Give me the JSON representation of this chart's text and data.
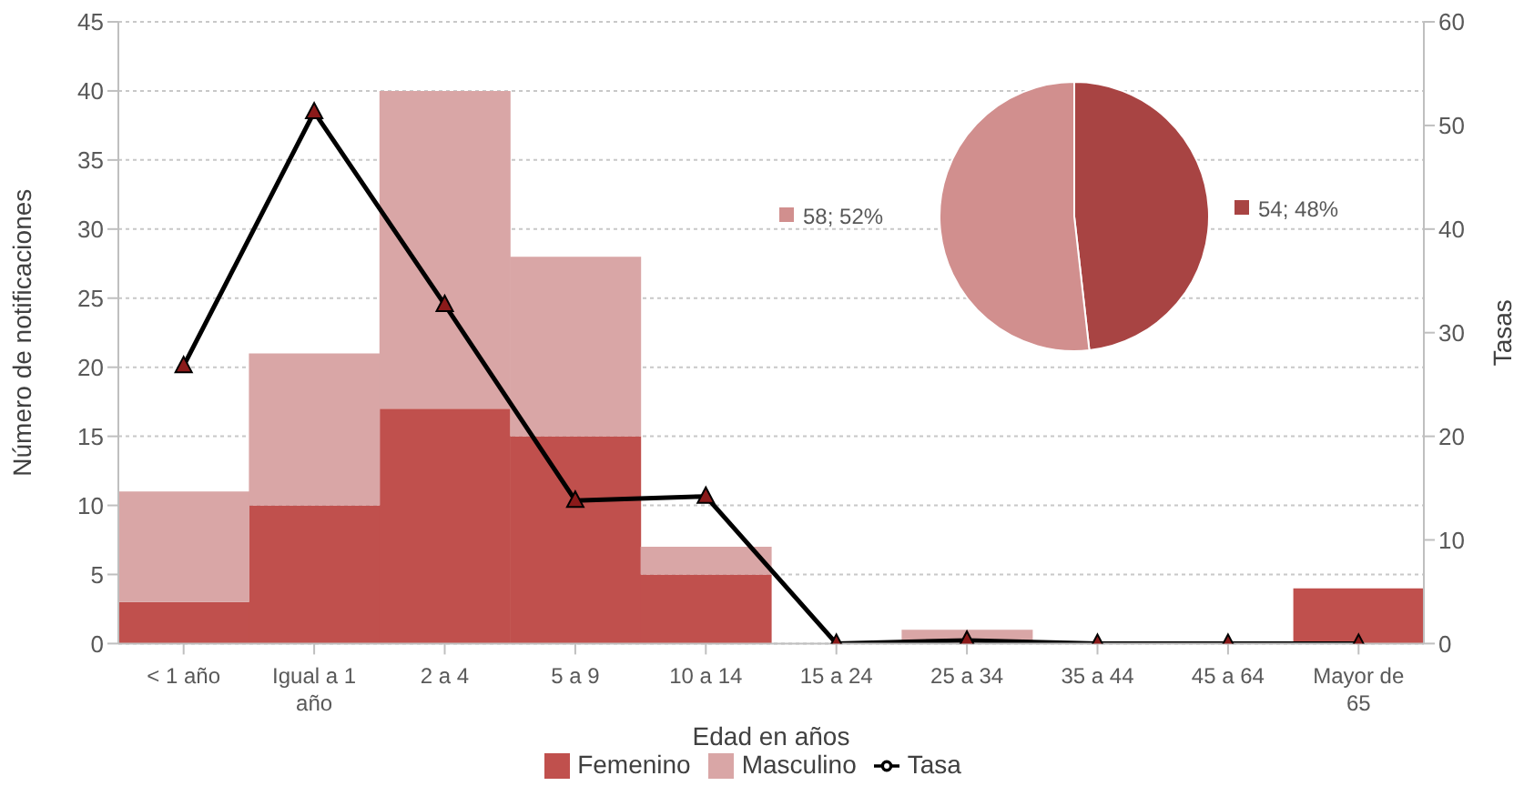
{
  "chart_data": [
    {
      "type": "bar",
      "xlabel": "Edad en años",
      "ylabel": "Número de notificaciones",
      "y2label": "Tasas",
      "categories": [
        "< 1 año",
        "Igual a 1 año",
        "2 a 4",
        "5 a 9",
        "10 a 14",
        "15 a 24",
        "25 a 34",
        "35 a 44",
        "45 a 64",
        "Mayor de 65"
      ],
      "series": [
        {
          "name": "Femenino",
          "color": "#c0504d",
          "values": [
            3,
            10,
            17,
            15,
            5,
            0,
            0,
            0,
            0,
            4
          ]
        },
        {
          "name": "Masculino",
          "color": "#d9a6a6",
          "values": [
            8,
            11,
            23,
            13,
            2,
            0,
            1,
            0,
            0,
            0
          ]
        },
        {
          "name": "Tasa",
          "type": "line",
          "axis": "y2",
          "color": "#000000",
          "marker": "triangle",
          "values": [
            26.8,
            51.3,
            32.7,
            13.8,
            14.2,
            0,
            0.3,
            0,
            0,
            0
          ]
        }
      ],
      "stacked": true,
      "ylim": [
        0,
        45
      ],
      "yticks": [
        0,
        5,
        10,
        15,
        20,
        25,
        30,
        35,
        40,
        45
      ],
      "y2lim": [
        0,
        60
      ],
      "y2ticks": [
        0,
        10,
        20,
        30,
        40,
        50,
        60
      ],
      "grid": "y",
      "legend": "bottom"
    },
    {
      "type": "pie",
      "categories": [
        null,
        null
      ],
      "values": [
        54,
        58
      ],
      "colors": [
        "#a84443",
        "#d18f8e"
      ],
      "value_labels": [
        "54; 48%",
        "58; 52%"
      ]
    }
  ]
}
